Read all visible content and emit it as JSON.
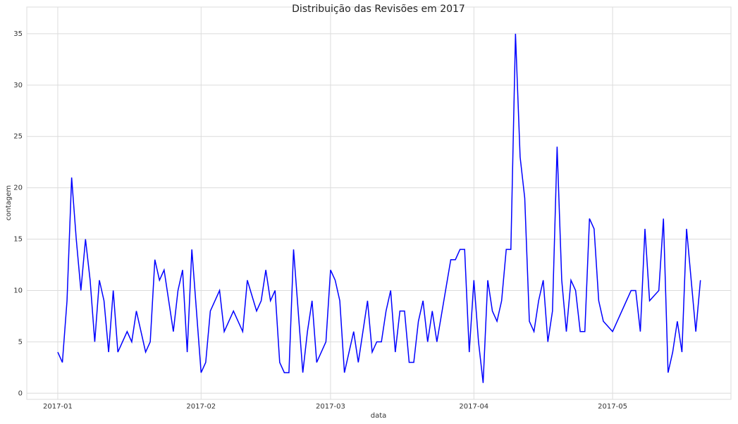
{
  "chart_data": {
    "type": "line",
    "title": "Distribuição das Revisões em 2017",
    "x_label": "data",
    "y_label": "contagem",
    "x": [
      1,
      2,
      3,
      4,
      5,
      6,
      7,
      8,
      9,
      10,
      11,
      12,
      13,
      14,
      16,
      17,
      18,
      20,
      21,
      22,
      23,
      24,
      26,
      27,
      28,
      29,
      30,
      31,
      32,
      33,
      34,
      36,
      37,
      39,
      41,
      42,
      44,
      45,
      46,
      47,
      48,
      49,
      50,
      51,
      52,
      53,
      54,
      55,
      56,
      57,
      59,
      60,
      61,
      62,
      63,
      64,
      65,
      66,
      68,
      69,
      70,
      71,
      72,
      73,
      74,
      75,
      76,
      77,
      78,
      79,
      80,
      81,
      82,
      83,
      86,
      87,
      88,
      89,
      90,
      91,
      92,
      93,
      94,
      95,
      96,
      97,
      98,
      99,
      100,
      101,
      102,
      103,
      104,
      105,
      106,
      107,
      108,
      109,
      110,
      111,
      112,
      113,
      114,
      115,
      116,
      117,
      118,
      119,
      121,
      125,
      126,
      127,
      128,
      129,
      131,
      132,
      133,
      134,
      135,
      136,
      137,
      138,
      139,
      140
    ],
    "series": [
      {
        "name": "contagem",
        "color": "#0000ff",
        "values": [
          4,
          3,
          9,
          21,
          15,
          10,
          15,
          11,
          5,
          11,
          9,
          4,
          10,
          4,
          6,
          5,
          8,
          4,
          5,
          13,
          11,
          12,
          6,
          10,
          12,
          4,
          14,
          8,
          2,
          3,
          8,
          10,
          6,
          8,
          6,
          11,
          8,
          9,
          12,
          9,
          10,
          3,
          2,
          2,
          14,
          8,
          2,
          6,
          9,
          3,
          5,
          12,
          11,
          9,
          2,
          4,
          6,
          3,
          9,
          4,
          5,
          5,
          8,
          10,
          4,
          8,
          8,
          3,
          3,
          7,
          9,
          5,
          8,
          5,
          13,
          13,
          14,
          14,
          4,
          11,
          5,
          1,
          11,
          8,
          7,
          9,
          14,
          14,
          35,
          23,
          19,
          7,
          6,
          9,
          11,
          5,
          8,
          24,
          11,
          6,
          11,
          10,
          6,
          6,
          17,
          16,
          9,
          7,
          6,
          10,
          10,
          6,
          16,
          9,
          10,
          17,
          2,
          4,
          7,
          4,
          16,
          11,
          6,
          11
        ]
      }
    ],
    "xlim": [
      -5.7,
      146.6
    ],
    "ylim": [
      -0.6,
      37.6
    ],
    "xticks": [
      {
        "value": 1,
        "label": "2017-01"
      },
      {
        "value": 32,
        "label": "2017-02"
      },
      {
        "value": 60,
        "label": "2017-03"
      },
      {
        "value": 91,
        "label": "2017-04"
      },
      {
        "value": 121,
        "label": "2017-05"
      }
    ],
    "yticks": [
      0,
      5,
      10,
      15,
      20,
      25,
      30,
      35
    ],
    "grid": true
  }
}
